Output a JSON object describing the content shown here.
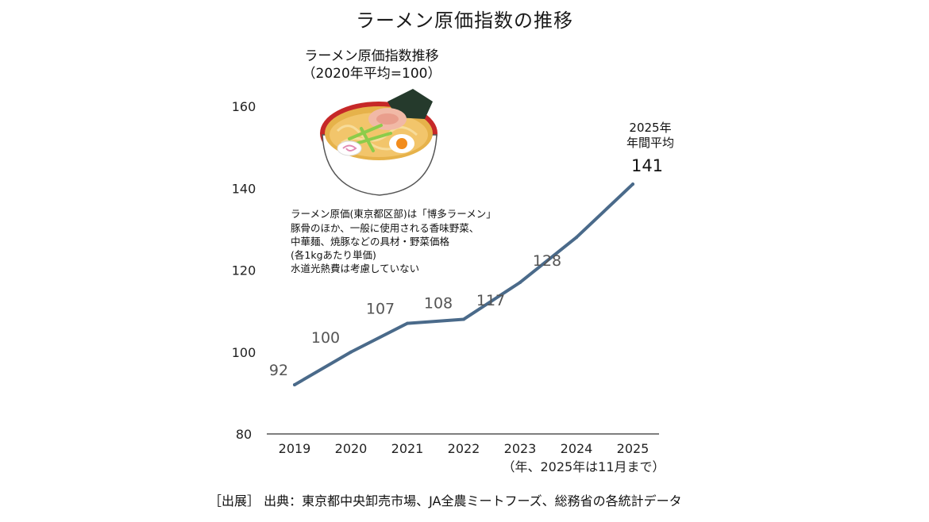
{
  "title": "ラーメン原価指数の推移",
  "inset": {
    "title_line1": "ラーメン原価指数推移",
    "title_line2": "（2020年平均=100）",
    "notes": [
      "ラーメン原価(東京都区部)は「博多ラーメン」",
      "豚骨のほか、一般に使用される香味野菜、",
      "中華麺、焼豚などの具材・野菜価格",
      "(各1kgあたり単価)",
      "水道光熱費は考慮していない"
    ]
  },
  "callout": {
    "line1": "2025年",
    "line2": "年間平均",
    "value": "141"
  },
  "x_note": "（年、2025年は11月まで）",
  "source": "［出展］ 出典：東京都中央卸売市場、JA全農ミートフーズ、総務省の各統計データ",
  "colors": {
    "line": "#4a6a8a",
    "axis": "#333333"
  },
  "icons": [
    "ramen-bowl-icon"
  ],
  "chart_data": {
    "type": "line",
    "categories": [
      "2019",
      "2020",
      "2021",
      "2022",
      "2023",
      "2024",
      "2025"
    ],
    "values": [
      92,
      100,
      107,
      108,
      117,
      128,
      141
    ],
    "data_labels": [
      "92",
      "100",
      "107",
      "108",
      "117",
      "128",
      "141"
    ],
    "yticks": [
      "80",
      "100",
      "120",
      "140",
      "160"
    ],
    "ylim": [
      80,
      160
    ],
    "title": "ラーメン原価指数の推移",
    "xlabel": "",
    "ylabel": "",
    "grid": false,
    "legend": "none"
  }
}
